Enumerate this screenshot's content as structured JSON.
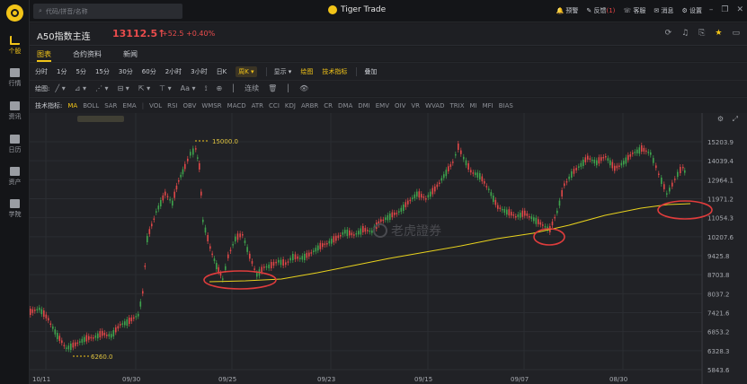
{
  "app": {
    "title": "Tiger Trade",
    "search_placeholder": "代码/拼音/名称"
  },
  "sidebar": [
    {
      "label": "个股",
      "active": true
    },
    {
      "label": "行情",
      "active": false
    },
    {
      "label": "资讯",
      "active": false
    },
    {
      "label": "日历",
      "active": false
    },
    {
      "label": "资产",
      "active": false
    },
    {
      "label": "学院",
      "active": false
    }
  ],
  "topbar": {
    "alerts": "预警",
    "feedback": "反馈",
    "feedback_count": "(1)",
    "service": "客服",
    "messages": "消息",
    "settings": "设置"
  },
  "symbol": {
    "name": "A50指数主连",
    "price": "13112.5",
    "arrow": "↑",
    "change": "+52.5",
    "change_pct": "+0.40%"
  },
  "tabs": [
    "图表",
    "合约资料",
    "新闻"
  ],
  "periods": [
    "分时",
    "1分",
    "5分",
    "15分",
    "30分",
    "60分",
    "2小时",
    "3小时",
    "日K",
    "周K ▾"
  ],
  "period_tools": [
    "显示 ▾",
    "绘图",
    "技术指标",
    "叠加"
  ],
  "draw_tools": {
    "label": "绘图:",
    "tools": [
      "╱ ▾",
      "⊿ ▾",
      "⋰ ▾",
      "⊟ ▾",
      "⇱ ▾",
      "⊤ ▾",
      "Aa ▾",
      "⟟",
      "⊕",
      "│",
      "连续",
      "🗑",
      "│",
      "👁"
    ]
  },
  "indicators": {
    "label": "技术指标:",
    "main": [
      "MA",
      "BOLL",
      "SAR",
      "EMA"
    ],
    "sub": [
      "VOL",
      "RSI",
      "OBV",
      "WMSR",
      "MACD",
      "ATR",
      "CCI",
      "KDJ",
      "ARBR",
      "CR",
      "DMA",
      "DMI",
      "EMV",
      "OIV",
      "VR",
      "WVAD",
      "TRIX",
      "MI",
      "MFI",
      "BIAS"
    ]
  },
  "chart_data": {
    "type": "candlestick",
    "y_ticks": [
      "15203.9",
      "14039.4",
      "12964.1",
      "11971.2",
      "11054.3",
      "10207.6",
      "9425.8",
      "8703.8",
      "8037.2",
      "7421.6",
      "6853.2",
      "6328.3",
      "5843.6"
    ],
    "x_ticks": [
      "10/11",
      "09/30",
      "09/25",
      "09/23",
      "09/15",
      "09/07",
      "08/30"
    ],
    "annotations": {
      "high": "15000.0",
      "low": "6260.0"
    },
    "watermark": "老虎證券",
    "colors": {
      "up": "#3fa34d",
      "down": "#e04848",
      "ma": "#e8d21d",
      "circle": "#e03c3c",
      "marker": "#f2c418"
    }
  }
}
